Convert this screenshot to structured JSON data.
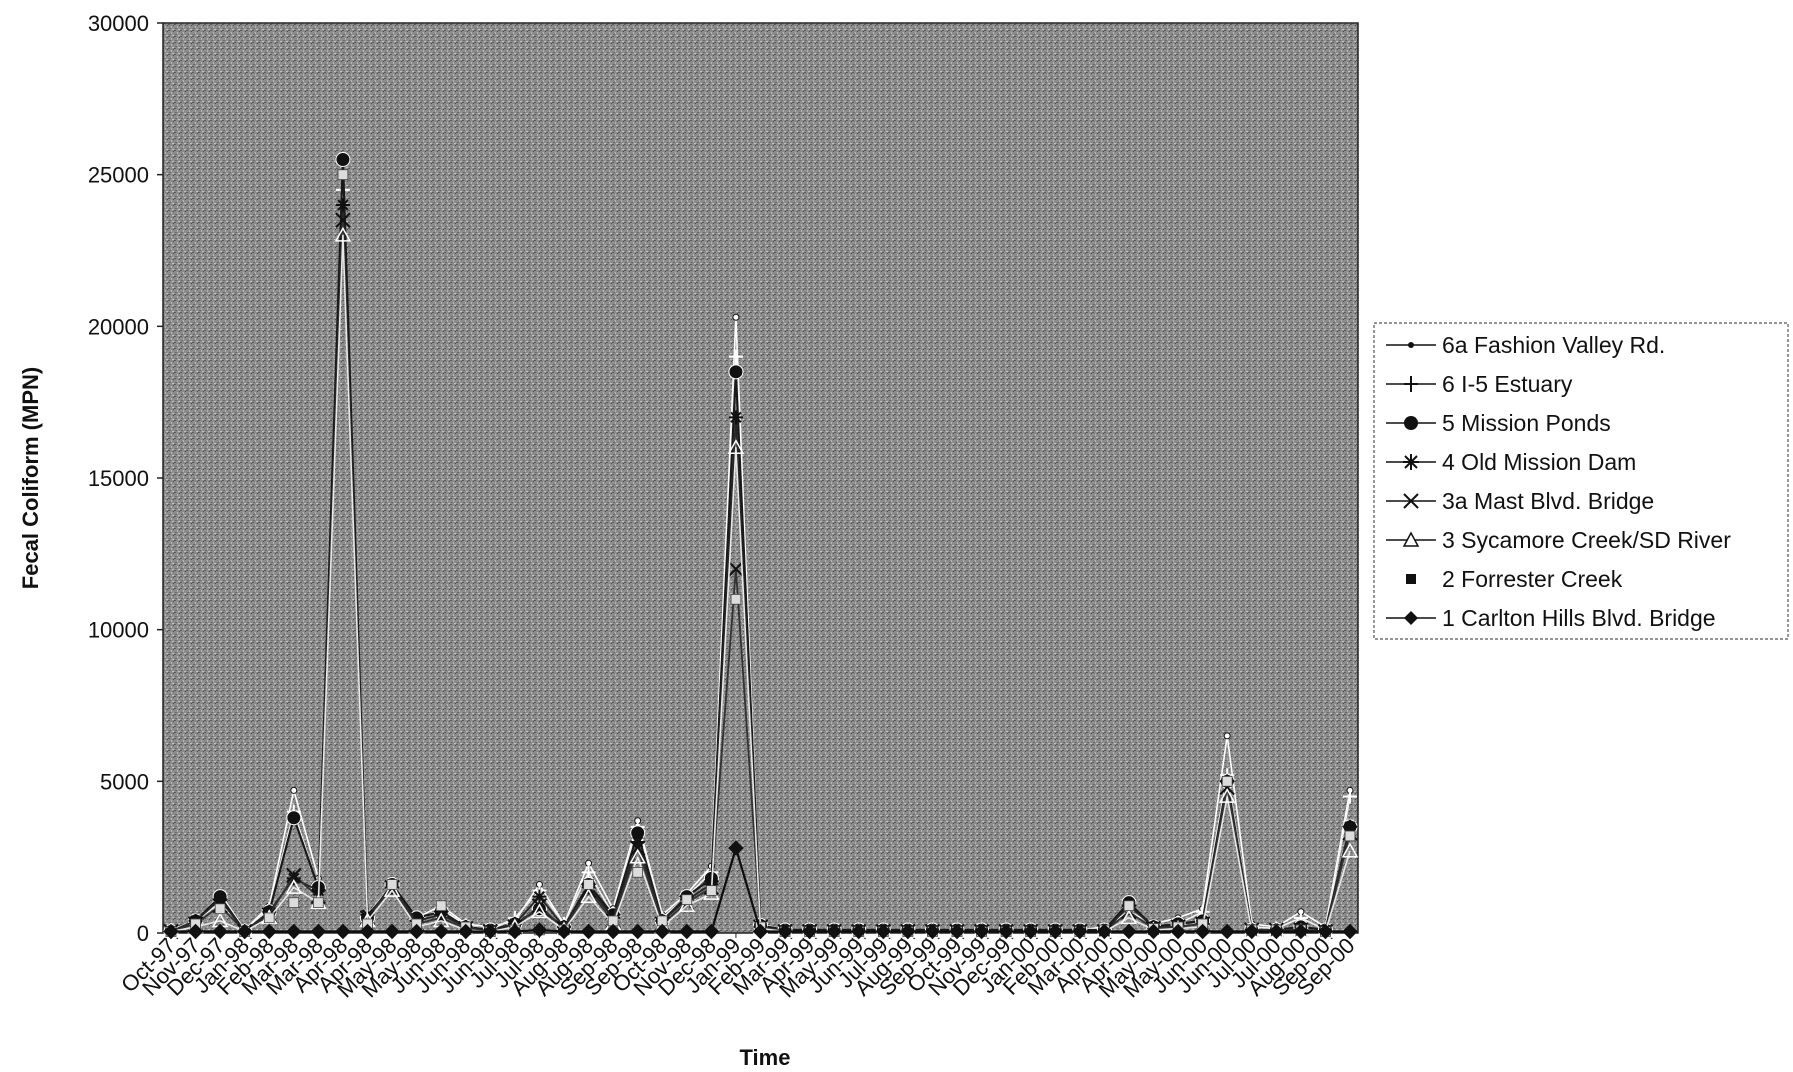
{
  "chart_data": {
    "type": "line",
    "title": "",
    "xlabel": "Time",
    "ylabel": "Fecal Coliform (MPN)",
    "ylim": [
      0,
      30000
    ],
    "yticks": [
      0,
      5000,
      10000,
      15000,
      20000,
      25000,
      30000
    ],
    "grid": false,
    "legend_position": "right",
    "categories": [
      "Oct-97",
      "Nov-97",
      "Dec-97",
      "Jan-98",
      "Feb-98",
      "Mar-98",
      "Mar-98",
      "Apr-98",
      "Apr-98",
      "May-98",
      "May-98",
      "Jun-98",
      "Jun-98",
      "Jun-98",
      "Jul-98",
      "Jul-98",
      "Aug-98",
      "Aug-98",
      "Sep-98",
      "Sep-98",
      "Oct-98",
      "Nov-98",
      "Dec-98",
      "Jan-99",
      "Feb-99",
      "Mar-99",
      "Apr-99",
      "May-99",
      "Jun-99",
      "Jul-99",
      "Aug-99",
      "Sep-99",
      "Oct-99",
      "Nov-99",
      "Dec-99",
      "Jan-00",
      "Feb-00",
      "Mar-00",
      "Apr-00",
      "Apr-00",
      "May-00",
      "May-00",
      "Jun-00",
      "Jun-00",
      "Jul-00",
      "Jul-00",
      "Aug-00",
      "Sep-00",
      "Sep-00"
    ],
    "series": [
      {
        "name": "6a Fashion Valley Rd.",
        "marker": "dot",
        "values": [
          150,
          300,
          1300,
          100,
          900,
          4700,
          1800,
          25500,
          600,
          1600,
          500,
          900,
          300,
          200,
          400,
          1600,
          300,
          2300,
          800,
          3700,
          600,
          1300,
          2200,
          20300,
          300,
          100,
          100,
          100,
          100,
          100,
          100,
          100,
          100,
          100,
          100,
          100,
          100,
          100,
          200,
          700,
          300,
          500,
          800,
          6500,
          300,
          200,
          700,
          200,
          4700
        ]
      },
      {
        "name": "6 I-5 Estuary",
        "marker": "plus",
        "values": [
          100,
          400,
          1000,
          50,
          800,
          4000,
          1500,
          24500,
          500,
          1600,
          400,
          800,
          250,
          100,
          500,
          1400,
          300,
          2000,
          600,
          3500,
          500,
          1200,
          2000,
          19000,
          250,
          100,
          50,
          50,
          50,
          50,
          50,
          50,
          50,
          50,
          50,
          50,
          50,
          50,
          100,
          900,
          200,
          300,
          700,
          5200,
          200,
          150,
          500,
          100,
          4500
        ]
      },
      {
        "name": "5 Mission Ponds",
        "marker": "circle",
        "values": [
          50,
          400,
          1200,
          50,
          700,
          3800,
          1500,
          25500,
          500,
          1600,
          500,
          700,
          200,
          100,
          300,
          800,
          200,
          1600,
          600,
          3300,
          400,
          1200,
          1800,
          18500,
          250,
          100,
          100,
          100,
          100,
          100,
          100,
          100,
          100,
          100,
          100,
          100,
          100,
          100,
          100,
          1000,
          200,
          300,
          400,
          5000,
          100,
          100,
          200,
          100,
          3500
        ]
      },
      {
        "name": "4 Old Mission Dam",
        "marker": "asterisk",
        "values": [
          50,
          400,
          1100,
          50,
          700,
          1800,
          1400,
          24000,
          600,
          1500,
          400,
          600,
          200,
          50,
          300,
          1200,
          200,
          1500,
          500,
          3000,
          400,
          1100,
          1600,
          17000,
          200,
          50,
          50,
          50,
          50,
          50,
          50,
          50,
          50,
          50,
          50,
          50,
          50,
          50,
          50,
          900,
          200,
          200,
          300,
          5000,
          100,
          100,
          100,
          50,
          3500
        ]
      },
      {
        "name": "3a Mast Blvd. Bridge",
        "marker": "x",
        "values": [
          50,
          300,
          900,
          50,
          600,
          1900,
          1200,
          23500,
          500,
          1500,
          300,
          500,
          150,
          50,
          200,
          900,
          150,
          1400,
          400,
          2800,
          300,
          1000,
          1500,
          12000,
          200,
          50,
          50,
          50,
          50,
          50,
          50,
          50,
          50,
          50,
          50,
          50,
          50,
          50,
          50,
          700,
          150,
          200,
          300,
          4800,
          100,
          100,
          100,
          50,
          3300
        ]
      },
      {
        "name": "3 Sycamore Creek/SD River",
        "marker": "triangle",
        "values": [
          50,
          200,
          400,
          50,
          500,
          1500,
          1000,
          23000,
          400,
          1400,
          200,
          400,
          100,
          50,
          200,
          700,
          100,
          1200,
          300,
          2500,
          200,
          900,
          1300,
          16000,
          150,
          50,
          50,
          50,
          50,
          50,
          50,
          50,
          50,
          50,
          50,
          50,
          50,
          50,
          50,
          500,
          100,
          150,
          200,
          4500,
          50,
          50,
          50,
          50,
          2700
        ]
      },
      {
        "name": "2 Forrester Creek",
        "marker": "square",
        "values": [
          50,
          300,
          800,
          50,
          500,
          1000,
          1000,
          25000,
          300,
          1600,
          300,
          900,
          200,
          50,
          100,
          100,
          100,
          1600,
          400,
          2000,
          400,
          1100,
          1400,
          11000,
          200,
          50,
          50,
          50,
          50,
          50,
          50,
          50,
          50,
          50,
          50,
          50,
          50,
          50,
          100,
          900,
          150,
          200,
          300,
          5000,
          100,
          100,
          100,
          50,
          3200
        ]
      },
      {
        "name": "1 Carlton Hills Blvd. Bridge",
        "marker": "diamond",
        "values": [
          50,
          50,
          50,
          50,
          50,
          50,
          50,
          50,
          50,
          50,
          50,
          50,
          50,
          50,
          50,
          100,
          50,
          50,
          50,
          50,
          50,
          50,
          50,
          2800,
          50,
          50,
          50,
          50,
          50,
          50,
          50,
          50,
          50,
          50,
          50,
          50,
          50,
          50,
          50,
          50,
          50,
          50,
          50,
          50,
          50,
          50,
          50,
          50,
          50
        ]
      }
    ]
  }
}
